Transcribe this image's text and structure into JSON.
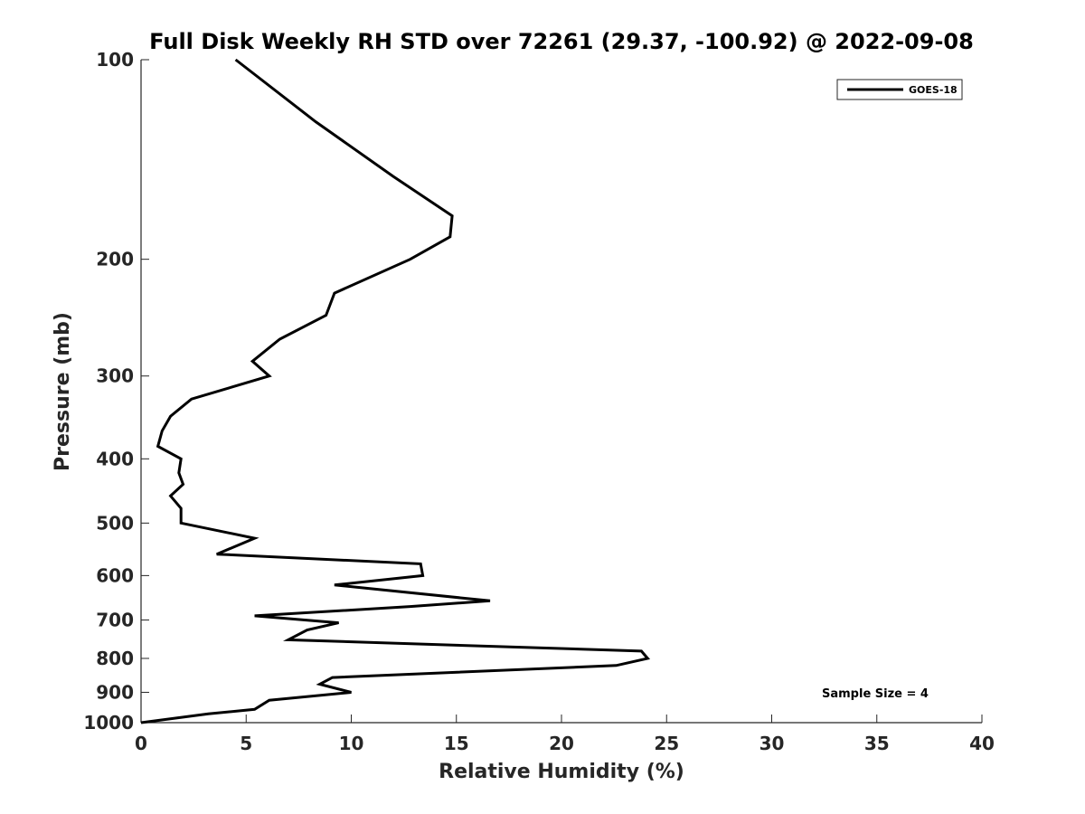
{
  "chart_data": {
    "type": "line",
    "title": "Full Disk Weekly RH STD over 72261 (29.37, -100.92) @ 2022-09-08",
    "xlabel": "Relative Humidity (%)",
    "ylabel": "Pressure (mb)",
    "xlim": [
      0,
      40
    ],
    "ylim": [
      100,
      1000
    ],
    "yscale": "log",
    "yaxis_reversed": true,
    "xticks": [
      "0",
      "5",
      "10",
      "15",
      "20",
      "25",
      "30",
      "35",
      "40"
    ],
    "yticks": [
      "100",
      "200",
      "300",
      "400",
      "500",
      "600",
      "700",
      "800",
      "900",
      "1000"
    ],
    "grid": false,
    "legend_position": "top-right",
    "annotation": "Sample Size = 4",
    "series": [
      {
        "name": "GOES-18",
        "color": "#000000",
        "points": [
          [
            4.5,
            100
          ],
          [
            8.3,
            124
          ],
          [
            12.0,
            150
          ],
          [
            14.8,
            172
          ],
          [
            14.7,
            185
          ],
          [
            12.8,
            200
          ],
          [
            9.2,
            225
          ],
          [
            8.8,
            243
          ],
          [
            6.6,
            264
          ],
          [
            5.3,
            285
          ],
          [
            6.1,
            300
          ],
          [
            2.4,
            325
          ],
          [
            1.4,
            345
          ],
          [
            1.0,
            363
          ],
          [
            0.8,
            383
          ],
          [
            1.9,
            400
          ],
          [
            1.8,
            420
          ],
          [
            2.0,
            437
          ],
          [
            1.4,
            455
          ],
          [
            1.9,
            475
          ],
          [
            1.9,
            500
          ],
          [
            5.4,
            527
          ],
          [
            3.6,
            557
          ],
          [
            13.3,
            576
          ],
          [
            13.4,
            600
          ],
          [
            9.2,
            620
          ],
          [
            16.6,
            655
          ],
          [
            12.8,
            668
          ],
          [
            5.4,
            690
          ],
          [
            9.4,
            707
          ],
          [
            7.9,
            725
          ],
          [
            7.0,
            750
          ],
          [
            23.8,
            780
          ],
          [
            24.1,
            800
          ],
          [
            22.6,
            820
          ],
          [
            9.1,
            855
          ],
          [
            8.5,
            875
          ],
          [
            10.0,
            900
          ],
          [
            6.1,
            925
          ],
          [
            5.4,
            955
          ],
          [
            3.2,
            970
          ],
          [
            0.0,
            1000
          ]
        ]
      }
    ]
  }
}
